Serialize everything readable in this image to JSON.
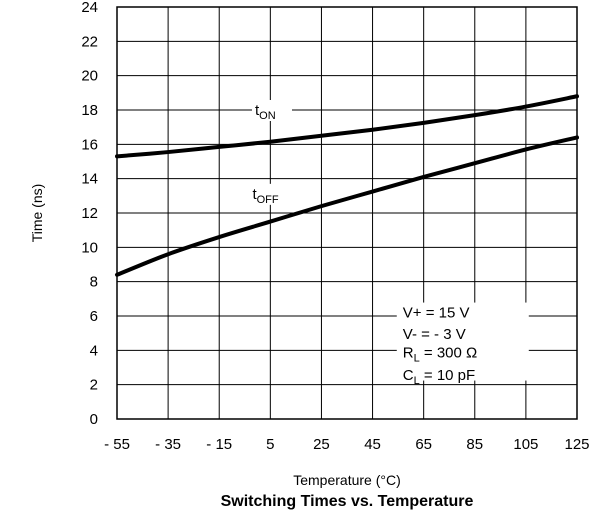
{
  "chart_data": {
    "type": "line",
    "title": "Switching Times vs. Temperature",
    "xlabel": "Temperature (°C)",
    "ylabel": "Time (ns)",
    "xlim": [
      -55,
      125
    ],
    "ylim": [
      0,
      24
    ],
    "x_ticks": [
      "- 55",
      "- 35",
      "- 15",
      "5",
      "25",
      "45",
      "65",
      "85",
      "105",
      "125"
    ],
    "y_ticks": [
      "0",
      "2",
      "4",
      "6",
      "8",
      "10",
      "12",
      "14",
      "16",
      "18",
      "20",
      "22",
      "24"
    ],
    "grid": true,
    "x": [
      -55,
      -35,
      -15,
      5,
      25,
      45,
      65,
      85,
      105,
      125
    ],
    "series": [
      {
        "name": "tON",
        "label_main": "t",
        "label_sub": "ON",
        "values": [
          15.3,
          15.55,
          15.85,
          16.15,
          16.5,
          16.85,
          17.25,
          17.7,
          18.2,
          18.8
        ]
      },
      {
        "name": "tOFF",
        "label_main": "t",
        "label_sub": "OFF",
        "values": [
          8.4,
          9.6,
          10.6,
          11.5,
          12.4,
          13.25,
          14.1,
          14.9,
          15.7,
          16.4
        ]
      }
    ],
    "conditions": {
      "line1": "V+ = 15 V",
      "line2": "V- = - 3 V",
      "line3_main": "R",
      "line3_sub": "L",
      "line3_rest": " = 300 Ω",
      "line4_main": "C",
      "line4_sub": "L",
      "line4_rest": " = 10 pF"
    }
  }
}
